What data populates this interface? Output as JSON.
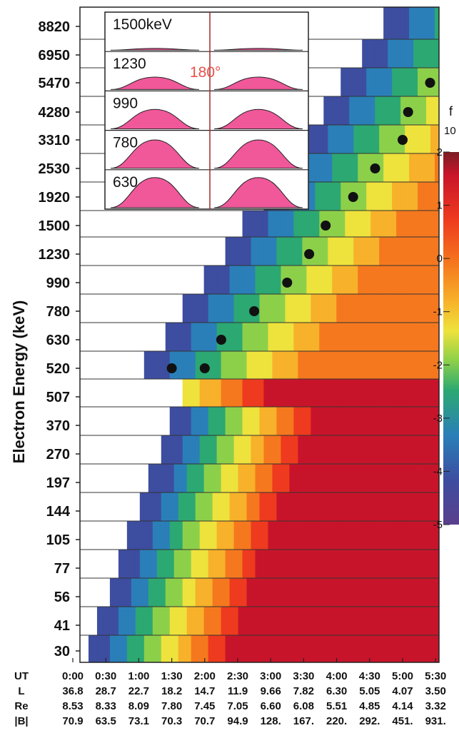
{
  "chart_data": {
    "type": "heatmap",
    "y_axis_label": "Electron Energy (keV)",
    "energy_channels_keV": [
      "8820",
      "6950",
      "5470",
      "4280",
      "3310",
      "2530",
      "1920",
      "1500",
      "1230",
      "990",
      "780",
      "630",
      "520",
      "507",
      "370",
      "270",
      "197",
      "144",
      "105",
      "77",
      "56",
      "41",
      "30"
    ],
    "time_axis": {
      "rows": [
        {
          "label": "UT",
          "values": [
            "0:00",
            "0:30",
            "1:00",
            "1:30",
            "2:00",
            "2:30",
            "3:00",
            "3:30",
            "4:00",
            "4:30",
            "5:00",
            "5:30"
          ]
        },
        {
          "label": "L",
          "values": [
            "36.8",
            "28.7",
            "22.7",
            "18.2",
            "14.7",
            "11.9",
            "9.66",
            "7.82",
            "6.30",
            "5.05",
            "4.07",
            "3.50"
          ]
        },
        {
          "label": "Re",
          "values": [
            "8.53",
            "8.33",
            "8.09",
            "7.80",
            "7.45",
            "7.05",
            "6.60",
            "6.08",
            "5.51",
            "4.85",
            "4.14",
            "3.32"
          ]
        },
        {
          "label": "|B|",
          "values": [
            "70.9",
            "63.5",
            "73.1",
            "70.3",
            "70.7",
            "94.9",
            "128.",
            "167.",
            "220.",
            "292.",
            "451.",
            "931."
          ]
        }
      ]
    },
    "colorbar": {
      "label": "f",
      "scale_label": "10",
      "ticks": [
        "2",
        "1",
        "0",
        "-1",
        "-2",
        "-3",
        "-4",
        "-5"
      ],
      "range": [
        -5,
        2
      ],
      "colors": [
        "#7a1e24",
        "#c8142a",
        "#ee3a1e",
        "#f5781e",
        "#f7b12a",
        "#eee23c",
        "#8cd04a",
        "#2ca872",
        "#2a7fb8",
        "#3d4da0",
        "#5a3f8c"
      ]
    },
    "black_dots": [
      {
        "ut": "1:30",
        "energy_keV": 520
      },
      {
        "ut": "2:00",
        "energy_keV": 520
      },
      {
        "ut": "2:15",
        "energy_keV": 630
      },
      {
        "ut": "2:45",
        "energy_keV": 780
      },
      {
        "ut": "3:15",
        "energy_keV": 990
      },
      {
        "ut": "3:35",
        "energy_keV": 1230
      },
      {
        "ut": "3:50",
        "energy_keV": 1500
      },
      {
        "ut": "4:15",
        "energy_keV": 1920
      },
      {
        "ut": "4:35",
        "energy_keV": 2530
      },
      {
        "ut": "5:00",
        "energy_keV": 3310
      },
      {
        "ut": "5:05",
        "energy_keV": 4280
      },
      {
        "ut": "5:25",
        "energy_keV": 5470
      }
    ],
    "inset": {
      "panels": [
        "1500keV",
        "1230",
        "990",
        "780",
        "630"
      ],
      "center_angle_label": "180°",
      "pitch_angle_peak_heights": [
        0.05,
        0.35,
        0.55,
        0.8,
        0.85
      ]
    }
  }
}
